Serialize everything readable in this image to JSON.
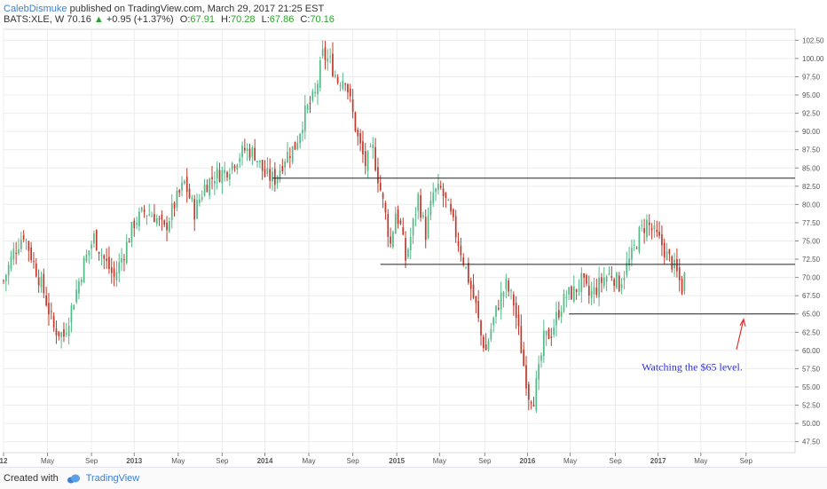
{
  "header": {
    "author": "CalebDismuke",
    "published_text": "published on TradingView.com, March 29, 2017 21:25 EST",
    "symbol": "BATS:XLE, W",
    "last": "70.16",
    "change": "+0.95 (+1.37%)",
    "o_label": "O:",
    "o_val": "67.91",
    "h_label": "H:",
    "h_val": "70.28",
    "l_label": "L:",
    "l_val": "67.86",
    "c_label": "C:",
    "c_val": "70.16",
    "arrow": "▲"
  },
  "footer": {
    "created_with": "Created with",
    "brand": "TradingView"
  },
  "chart_data": {
    "type": "candlestick",
    "timeframe": "weekly",
    "y_ticks": [
      47.5,
      50,
      52.5,
      55,
      57.5,
      60,
      62.5,
      65,
      67.5,
      70,
      72.5,
      75,
      77.5,
      80,
      82.5,
      85,
      87.5,
      90,
      92.5,
      95,
      97.5,
      100,
      102.5
    ],
    "ylim": [
      46.0,
      104.0
    ],
    "x_ticks": [
      {
        "label": "12",
        "t": 0.0
      },
      {
        "label": "May",
        "t": 17.5
      },
      {
        "label": "Sep",
        "t": 35.0
      },
      {
        "label": "2013",
        "t": 52.0
      },
      {
        "label": "May",
        "t": 69.5
      },
      {
        "label": "Sep",
        "t": 87.0
      },
      {
        "label": "2014",
        "t": 104.0
      },
      {
        "label": "May",
        "t": 121.5
      },
      {
        "label": "Sep",
        "t": 139.0
      },
      {
        "label": "2015",
        "t": 156.5
      },
      {
        "label": "May",
        "t": 173.5
      },
      {
        "label": "Sep",
        "t": 191.5
      },
      {
        "label": "2016",
        "t": 208.5
      },
      {
        "label": "May",
        "t": 225.5
      },
      {
        "label": "Sep",
        "t": 243.5
      },
      {
        "label": "2017",
        "t": 260.5
      },
      {
        "label": "May",
        "t": 277.5
      },
      {
        "label": "Sep",
        "t": 295.5
      }
    ],
    "x_range": [
      0,
      315
    ],
    "price_path": [
      [
        0,
        69.5
      ],
      [
        4,
        73.5
      ],
      [
        8,
        76.0
      ],
      [
        12,
        72.0
      ],
      [
        16,
        68.0
      ],
      [
        20,
        63.0
      ],
      [
        24,
        62.0
      ],
      [
        28,
        67.0
      ],
      [
        32,
        72.0
      ],
      [
        36,
        75.5
      ],
      [
        40,
        72.5
      ],
      [
        44,
        70.0
      ],
      [
        48,
        73.5
      ],
      [
        52,
        77.5
      ],
      [
        56,
        79.0
      ],
      [
        60,
        78.5
      ],
      [
        64,
        76.5
      ],
      [
        68,
        80.0
      ],
      [
        72,
        83.0
      ],
      [
        76,
        79.0
      ],
      [
        80,
        82.5
      ],
      [
        84,
        84.0
      ],
      [
        88,
        84.5
      ],
      [
        92,
        86.0
      ],
      [
        96,
        87.5
      ],
      [
        100,
        87.0
      ],
      [
        104,
        84.0
      ],
      [
        108,
        83.5
      ],
      [
        112,
        86.5
      ],
      [
        116,
        88.0
      ],
      [
        120,
        92.5
      ],
      [
        124,
        95.0
      ],
      [
        127,
        100.5
      ],
      [
        130,
        99.5
      ],
      [
        133,
        97.0
      ],
      [
        136,
        97.5
      ],
      [
        138,
        94.0
      ],
      [
        141,
        89.0
      ],
      [
        144,
        85.5
      ],
      [
        147,
        87.5
      ],
      [
        150,
        82.0
      ],
      [
        152,
        78.5
      ],
      [
        154,
        74.5
      ],
      [
        156,
        79.0
      ],
      [
        158,
        77.0
      ],
      [
        160,
        72.5
      ],
      [
        162,
        75.5
      ],
      [
        165,
        81.0
      ],
      [
        168,
        76.0
      ],
      [
        171,
        81.5
      ],
      [
        174,
        82.0
      ],
      [
        177,
        79.5
      ],
      [
        180,
        76.0
      ],
      [
        183,
        72.5
      ],
      [
        186,
        68.5
      ],
      [
        188,
        66.0
      ],
      [
        190,
        62.0
      ],
      [
        192,
        60.0
      ],
      [
        194,
        63.0
      ],
      [
        197,
        66.5
      ],
      [
        200,
        69.0
      ],
      [
        203,
        66.5
      ],
      [
        205,
        62.5
      ],
      [
        207,
        58.0
      ],
      [
        209,
        54.0
      ],
      [
        211,
        53.5
      ],
      [
        213,
        57.0
      ],
      [
        215,
        61.5
      ],
      [
        218,
        62.5
      ],
      [
        221,
        65.5
      ],
      [
        224,
        67.5
      ],
      [
        227,
        68.0
      ],
      [
        230,
        69.5
      ],
      [
        233,
        67.5
      ],
      [
        236,
        68.5
      ],
      [
        239,
        70.0
      ],
      [
        242,
        70.5
      ],
      [
        245,
        69.0
      ],
      [
        248,
        71.5
      ],
      [
        250,
        73.0
      ],
      [
        253,
        76.0
      ],
      [
        256,
        77.5
      ],
      [
        259,
        76.0
      ],
      [
        262,
        74.5
      ],
      [
        264,
        73.0
      ],
      [
        266,
        72.0
      ],
      [
        268,
        70.5
      ],
      [
        270,
        68.5
      ],
      [
        271,
        70.16
      ]
    ],
    "candle_count": 272,
    "horizontal_lines": [
      {
        "y": 83.6,
        "x_start": 107
      },
      {
        "y": 71.8,
        "x_start": 150
      },
      {
        "y": 65.0,
        "x_start": 225
      }
    ],
    "annotation": {
      "text": "Watching the $65 level.",
      "color": "#3333cc"
    },
    "colors": {
      "up": "#53b987",
      "down": "#c0392b",
      "line": "#222222",
      "arrow": "#e03030",
      "grid": "#ececec"
    }
  }
}
